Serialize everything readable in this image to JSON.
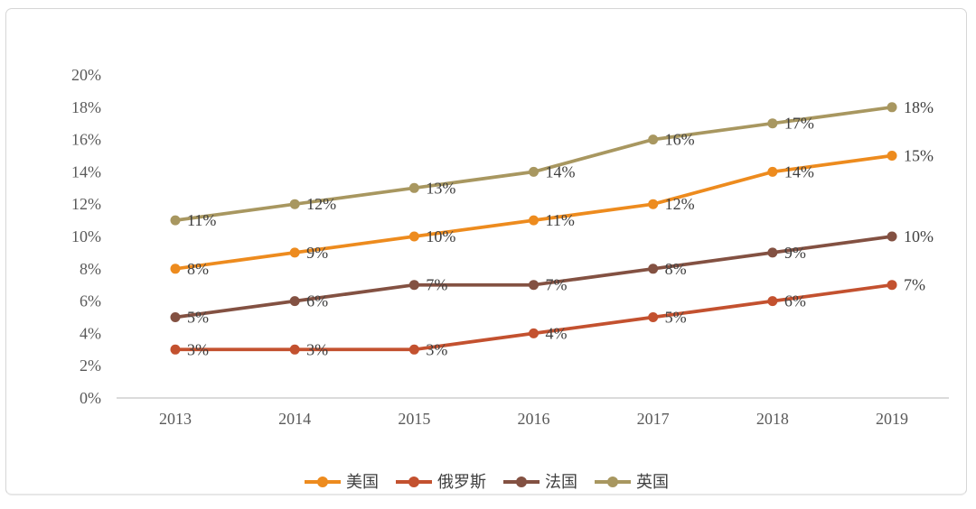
{
  "chart_data": {
    "type": "line",
    "title": "",
    "categories": [
      "2013",
      "2014",
      "2015",
      "2016",
      "2017",
      "2018",
      "2019"
    ],
    "series": [
      {
        "key": "us",
        "name": "美国",
        "color": "#ED8B1E",
        "values": [
          8,
          9,
          10,
          11,
          12,
          14,
          15
        ],
        "labels": [
          "8%",
          "9%",
          "10%",
          "11%",
          "12%",
          "14%",
          "15%"
        ]
      },
      {
        "key": "russia",
        "name": "俄罗斯",
        "color": "#C3512F",
        "values": [
          3,
          3,
          3,
          4,
          5,
          6,
          7
        ],
        "labels": [
          "3%",
          "3%",
          "3%",
          "4%",
          "5%",
          "6%",
          "7%"
        ]
      },
      {
        "key": "france",
        "name": "法国",
        "color": "#835142",
        "values": [
          5,
          6,
          7,
          7,
          8,
          9,
          10
        ],
        "labels": [
          "5%",
          "6%",
          "7%",
          "7%",
          "8%",
          "9%",
          "10%"
        ]
      },
      {
        "key": "uk",
        "name": "英国",
        "color": "#A89760",
        "values": [
          11,
          12,
          13,
          14,
          16,
          17,
          18
        ],
        "labels": [
          "11%",
          "12%",
          "13%",
          "14%",
          "16%",
          "17%",
          "18%"
        ]
      }
    ],
    "y_axis": {
      "min": 0,
      "max": 20,
      "step": 2,
      "tick_labels": [
        "0%",
        "2%",
        "4%",
        "6%",
        "8%",
        "10%",
        "12%",
        "14%",
        "16%",
        "18%",
        "20%"
      ]
    },
    "x_axis": {
      "tick_labels": [
        "2013",
        "2014",
        "2015",
        "2016",
        "2017",
        "2018",
        "2019"
      ]
    },
    "grid": false,
    "data_labels": true,
    "legend_position": "bottom",
    "axis_line_color": "#CFCFCF",
    "tick_label_color": "#595959",
    "data_label_color": "#404040"
  }
}
